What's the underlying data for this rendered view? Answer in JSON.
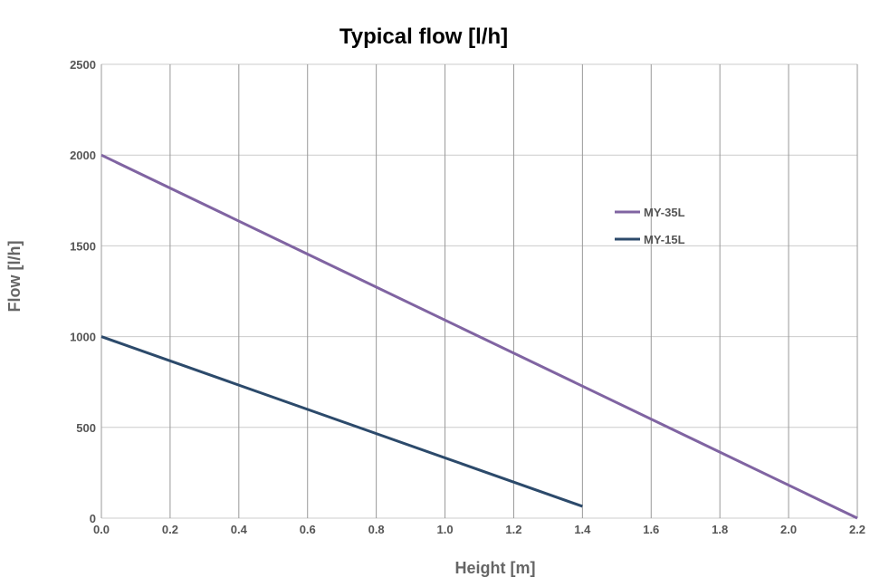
{
  "chart_data": {
    "type": "line",
    "title": "Typical flow [l/h]",
    "xlabel": "Height [m]",
    "ylabel": "Flow [l/h]",
    "xlim": [
      0,
      2.2
    ],
    "ylim": [
      0,
      2500
    ],
    "x_ticks": [
      "0.0",
      "0.2",
      "0.4",
      "0.6",
      "0.8",
      "1.0",
      "1.2",
      "1.4",
      "1.6",
      "1.8",
      "2.0",
      "2.2"
    ],
    "y_ticks": [
      "0",
      "500",
      "1000",
      "1500",
      "2000",
      "2500"
    ],
    "grid": true,
    "legend_position": "right",
    "series": [
      {
        "name": "MY-35L",
        "color": "#8064a2",
        "points": [
          [
            0,
            2000
          ],
          [
            2.2,
            0
          ]
        ]
      },
      {
        "name": "MY-15L",
        "color": "#2c4a6b",
        "points": [
          [
            0,
            1000
          ],
          [
            1.4,
            65
          ]
        ]
      }
    ]
  }
}
